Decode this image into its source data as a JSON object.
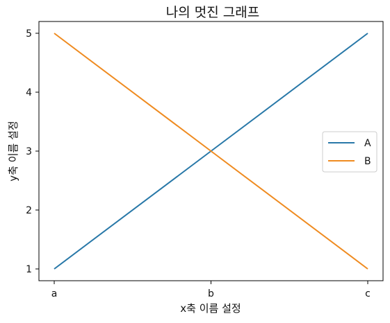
{
  "chart_data": {
    "type": "line",
    "title": "나의 멋진 그래프",
    "xlabel": "x축 이름 설정",
    "ylabel": "y축 이름 설정",
    "categories": [
      "a",
      "b",
      "c"
    ],
    "yticks": [
      1,
      2,
      3,
      4,
      5
    ],
    "ylim": [
      0.8,
      5.2
    ],
    "grid": false,
    "legend_position": "center-right",
    "series": [
      {
        "name": "A",
        "values": [
          1,
          3,
          5
        ],
        "color": "#2878a8"
      },
      {
        "name": "B",
        "values": [
          5,
          3,
          1
        ],
        "color": "#ef8b20"
      }
    ]
  }
}
